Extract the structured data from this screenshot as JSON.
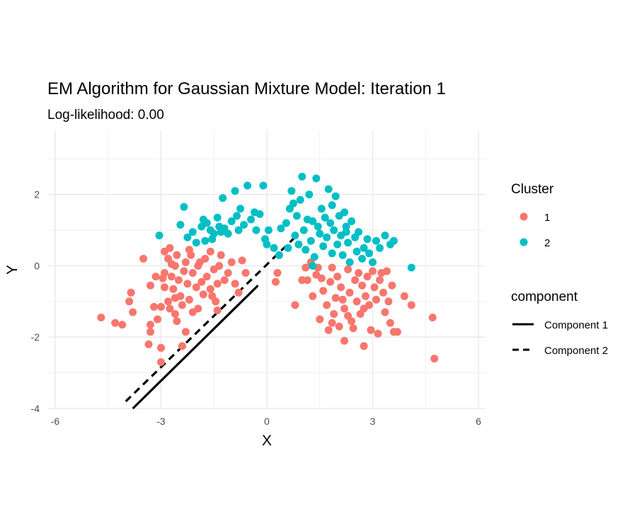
{
  "chart_data": {
    "type": "scatter",
    "title": "EM Algorithm for Gaussian Mixture Model: Iteration 1",
    "subtitle": "Log-likelihood: 0.00",
    "xlabel": "X",
    "ylabel": "Y",
    "xlim": [
      -6.2,
      6.2
    ],
    "ylim": [
      -4,
      3.8
    ],
    "x_ticks": [
      -6,
      -3,
      0,
      3,
      6
    ],
    "y_ticks": [
      -4,
      -2,
      0,
      2
    ],
    "grid": true,
    "legend_position": "right",
    "colors": {
      "1": "#F8766D",
      "2": "#00BFC4",
      "line": "#000000",
      "grid": "#EBEBEB"
    },
    "legend_cluster": {
      "title": "Cluster",
      "entries": [
        "1",
        "2"
      ]
    },
    "legend_component": {
      "title": "component",
      "entries": [
        "Component 1",
        "Component 2"
      ]
    },
    "lines": [
      {
        "name": "Component 1",
        "dash": "solid",
        "x": [
          -3.8,
          -0.25
        ],
        "y": [
          -4.0,
          -0.55
        ]
      },
      {
        "name": "Component 2",
        "dash": "dashed",
        "x": [
          -4.0,
          0.85
        ],
        "y": [
          -3.8,
          0.85
        ]
      }
    ],
    "series": [
      {
        "name": "1",
        "points": [
          [
            -4.7,
            -1.45
          ],
          [
            -4.3,
            -1.6
          ],
          [
            -4.1,
            -1.65
          ],
          [
            -3.85,
            -0.75
          ],
          [
            -3.9,
            -1.0
          ],
          [
            -3.8,
            -1.3
          ],
          [
            -3.5,
            0.2
          ],
          [
            -3.3,
            -0.55
          ],
          [
            -3.2,
            -1.15
          ],
          [
            -3.1,
            -1.5
          ],
          [
            -3.3,
            -1.65
          ],
          [
            -3.35,
            -2.2
          ],
          [
            -3.3,
            -1.85
          ],
          [
            -3.0,
            -2.3
          ],
          [
            -3.0,
            -2.7
          ],
          [
            -3.0,
            -1.15
          ],
          [
            -2.9,
            -0.6
          ],
          [
            -2.8,
            -1.0
          ],
          [
            -2.9,
            -0.2
          ],
          [
            -2.8,
            0.2
          ],
          [
            -2.9,
            0.4
          ],
          [
            -2.75,
            0.5
          ],
          [
            -2.7,
            -0.3
          ],
          [
            -2.65,
            -0.65
          ],
          [
            -2.6,
            -1.35
          ],
          [
            -2.55,
            -1.55
          ],
          [
            -2.6,
            0.0
          ],
          [
            -2.55,
            0.3
          ],
          [
            -2.5,
            -0.4
          ],
          [
            -2.45,
            -0.85
          ],
          [
            -2.4,
            -1.1
          ],
          [
            -2.35,
            -0.15
          ],
          [
            -2.3,
            0.1
          ],
          [
            -2.25,
            -0.5
          ],
          [
            -2.2,
            -0.95
          ],
          [
            -2.15,
            0.3
          ],
          [
            -2.1,
            -0.2
          ],
          [
            -2.0,
            -0.6
          ],
          [
            -1.95,
            -1.2
          ],
          [
            -1.9,
            0.1
          ],
          [
            -1.85,
            -0.45
          ],
          [
            -1.8,
            -0.8
          ],
          [
            -1.75,
            0.2
          ],
          [
            -1.7,
            -0.3
          ],
          [
            -1.6,
            -0.65
          ],
          [
            -1.6,
            0.4
          ],
          [
            -1.5,
            -0.1
          ],
          [
            -1.45,
            -1.0
          ],
          [
            -1.4,
            -0.5
          ],
          [
            -1.35,
            0.0
          ],
          [
            -1.3,
            0.3
          ],
          [
            -1.2,
            -0.4
          ],
          [
            -1.1,
            -0.2
          ],
          [
            -1.0,
            0.1
          ],
          [
            -0.9,
            -0.5
          ],
          [
            -0.8,
            -0.75
          ],
          [
            -0.7,
            0.15
          ],
          [
            -0.6,
            -0.2
          ],
          [
            -2.3,
            -1.85
          ],
          [
            -2.4,
            -2.25
          ],
          [
            -1.4,
            -1.25
          ],
          [
            -2.7,
            0.05
          ],
          [
            -2.95,
            -0.35
          ],
          [
            -2.2,
            0.45
          ],
          [
            -1.95,
            0.0
          ],
          [
            -2.6,
            -0.9
          ],
          [
            -2.1,
            -1.3
          ],
          [
            -1.55,
            -0.85
          ],
          [
            -2.75,
            -1.2
          ],
          [
            -3.15,
            -0.3
          ],
          [
            0.3,
            -0.2
          ],
          [
            0.25,
            -0.45
          ],
          [
            0.8,
            -1.1
          ],
          [
            1.0,
            -0.4
          ],
          [
            1.1,
            -0.05
          ],
          [
            1.15,
            -0.4
          ],
          [
            1.25,
            0.1
          ],
          [
            1.3,
            -0.85
          ],
          [
            1.4,
            -0.25
          ],
          [
            1.5,
            -1.5
          ],
          [
            1.6,
            -0.7
          ],
          [
            1.7,
            -1.1
          ],
          [
            1.75,
            -1.8
          ],
          [
            1.8,
            -0.45
          ],
          [
            1.85,
            -0.05
          ],
          [
            1.9,
            -1.35
          ],
          [
            1.95,
            -0.9
          ],
          [
            2.0,
            -0.3
          ],
          [
            2.05,
            -1.7
          ],
          [
            2.1,
            -0.6
          ],
          [
            2.2,
            -1.2
          ],
          [
            2.2,
            -2.1
          ],
          [
            2.3,
            -0.1
          ],
          [
            2.35,
            -0.75
          ],
          [
            2.4,
            -1.55
          ],
          [
            2.5,
            -0.4
          ],
          [
            2.55,
            -1.0
          ],
          [
            2.6,
            -0.2
          ],
          [
            2.65,
            -1.35
          ],
          [
            2.7,
            -0.55
          ],
          [
            2.75,
            -2.25
          ],
          [
            2.8,
            -0.85
          ],
          [
            2.85,
            -0.3
          ],
          [
            2.9,
            -1.1
          ],
          [
            2.95,
            -1.8
          ],
          [
            3.0,
            -0.15
          ],
          [
            3.05,
            -0.6
          ],
          [
            3.1,
            -0.95
          ],
          [
            3.15,
            -1.9
          ],
          [
            3.2,
            -0.4
          ],
          [
            3.3,
            -0.75
          ],
          [
            3.35,
            -1.3
          ],
          [
            3.4,
            -0.15
          ],
          [
            3.45,
            -1.0
          ],
          [
            3.5,
            -1.6
          ],
          [
            3.55,
            -0.55
          ],
          [
            3.6,
            -1.85
          ],
          [
            3.7,
            -1.85
          ],
          [
            3.9,
            -0.85
          ],
          [
            4.1,
            -1.1
          ],
          [
            4.7,
            -1.45
          ],
          [
            4.75,
            -2.6
          ],
          [
            1.55,
            -0.35
          ],
          [
            2.15,
            -0.95
          ],
          [
            2.45,
            -1.75
          ],
          [
            1.85,
            -1.6
          ],
          [
            2.75,
            -1.2
          ],
          [
            3.25,
            -0.2
          ],
          [
            1.45,
            -0.05
          ],
          [
            2.3,
            -1.4
          ]
        ]
      },
      {
        "name": "2",
        "points": [
          [
            -3.05,
            0.85
          ],
          [
            -2.35,
            1.65
          ],
          [
            -2.45,
            1.15
          ],
          [
            -2.25,
            0.8
          ],
          [
            -2.1,
            0.95
          ],
          [
            -2.0,
            0.65
          ],
          [
            -1.85,
            1.1
          ],
          [
            -1.8,
            1.3
          ],
          [
            -1.75,
            0.7
          ],
          [
            -1.7,
            1.2
          ],
          [
            -1.6,
            1.0
          ],
          [
            -1.55,
            0.75
          ],
          [
            -1.5,
            0.9
          ],
          [
            -1.4,
            1.35
          ],
          [
            -1.35,
            1.1
          ],
          [
            -1.25,
            1.9
          ],
          [
            -1.2,
            1.05
          ],
          [
            -1.1,
            0.9
          ],
          [
            -1.0,
            1.25
          ],
          [
            -0.9,
            2.1
          ],
          [
            -0.85,
            1.4
          ],
          [
            -0.75,
            1.6
          ],
          [
            -0.65,
            1.15
          ],
          [
            -0.55,
            2.25
          ],
          [
            -0.45,
            1.3
          ],
          [
            -0.35,
            1.5
          ],
          [
            -0.3,
            1.0
          ],
          [
            -0.2,
            1.45
          ],
          [
            -0.1,
            2.25
          ],
          [
            -0.05,
            0.75
          ],
          [
            0.0,
            0.6
          ],
          [
            0.05,
            1.0
          ],
          [
            0.2,
            0.5
          ],
          [
            0.35,
            0.3
          ],
          [
            0.4,
            1.05
          ],
          [
            0.55,
            1.2
          ],
          [
            0.6,
            0.5
          ],
          [
            0.7,
            2.1
          ],
          [
            0.75,
            1.75
          ],
          [
            0.8,
            0.85
          ],
          [
            0.85,
            1.4
          ],
          [
            0.9,
            0.6
          ],
          [
            0.95,
            1.85
          ],
          [
            1.0,
            2.5
          ],
          [
            1.05,
            1.0
          ],
          [
            1.1,
            0.45
          ],
          [
            1.15,
            1.3
          ],
          [
            1.2,
            2.0
          ],
          [
            1.25,
            0.7
          ],
          [
            1.3,
            1.25
          ],
          [
            1.35,
            0.25
          ],
          [
            1.4,
            2.45
          ],
          [
            1.45,
            1.1
          ],
          [
            1.5,
            0.9
          ],
          [
            1.55,
            1.6
          ],
          [
            1.6,
            0.55
          ],
          [
            1.65,
            1.35
          ],
          [
            1.7,
            0.8
          ],
          [
            1.75,
            2.15
          ],
          [
            1.8,
            1.2
          ],
          [
            1.85,
            0.35
          ],
          [
            1.9,
            1.0
          ],
          [
            1.95,
            1.95
          ],
          [
            2.0,
            0.6
          ],
          [
            2.05,
            1.4
          ],
          [
            2.1,
            0.85
          ],
          [
            2.15,
            0.3
          ],
          [
            2.2,
            1.5
          ],
          [
            2.25,
            1.1
          ],
          [
            2.3,
            0.65
          ],
          [
            2.35,
            0.1
          ],
          [
            2.4,
            1.25
          ],
          [
            2.5,
            0.8
          ],
          [
            2.55,
            0.4
          ],
          [
            2.6,
            0.95
          ],
          [
            2.7,
            0.2
          ],
          [
            2.75,
            0.5
          ],
          [
            2.85,
            0.75
          ],
          [
            2.9,
            0.35
          ],
          [
            3.0,
            0.1
          ],
          [
            3.1,
            0.7
          ],
          [
            3.2,
            0.5
          ],
          [
            3.35,
            0.85
          ],
          [
            3.5,
            0.6
          ],
          [
            3.6,
            0.7
          ],
          [
            4.1,
            -0.05
          ],
          [
            0.65,
            1.6
          ],
          [
            1.3,
            0.0
          ],
          [
            1.85,
            1.7
          ],
          [
            -1.3,
            0.95
          ],
          [
            -0.8,
            1.0
          ],
          [
            2.25,
            0.95
          ]
        ]
      }
    ]
  }
}
